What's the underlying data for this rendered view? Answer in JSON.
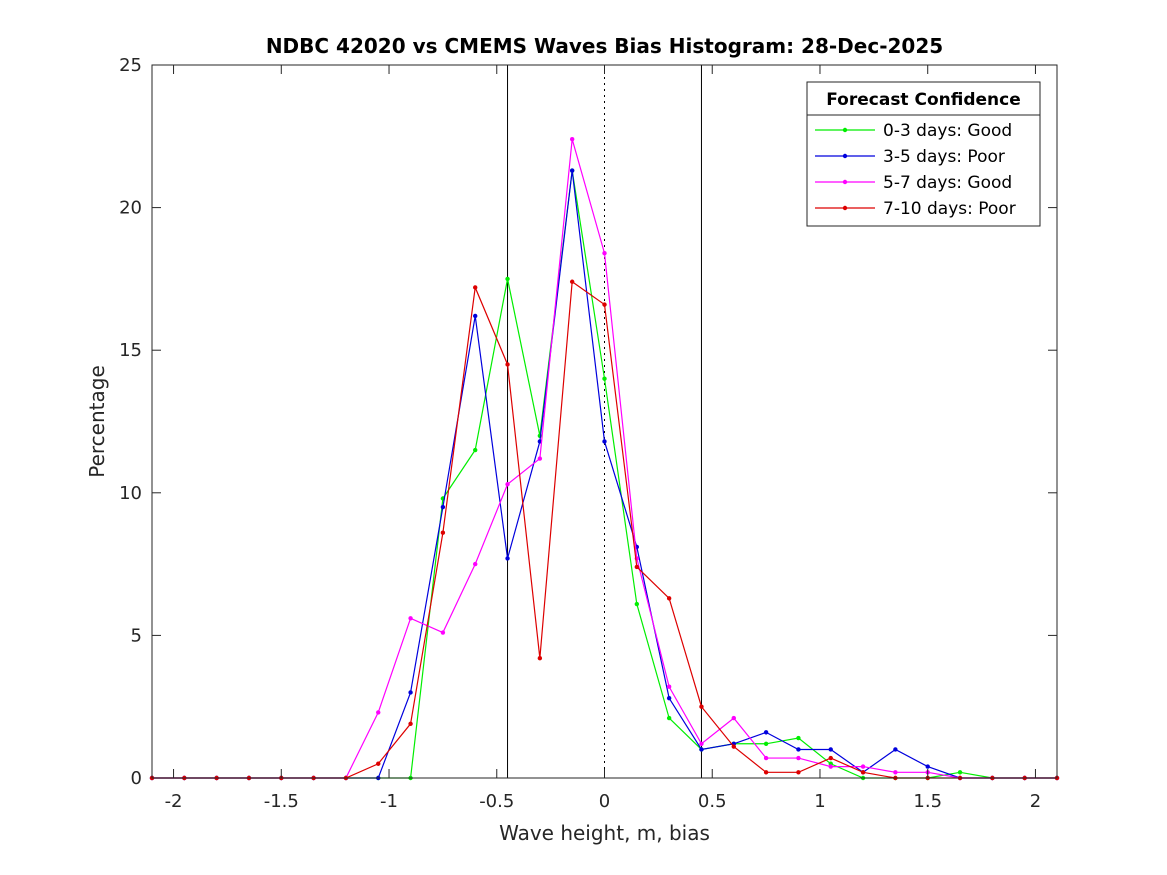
{
  "chart_data": {
    "type": "line",
    "title": "NDBC 42020 vs CMEMS Waves Bias Histogram: 28-Dec-2025",
    "xlabel": "Wave height, m, bias",
    "ylabel": "Percentage",
    "xlim": [
      -2.1,
      2.1
    ],
    "ylim": [
      0,
      25
    ],
    "xticks": [
      -2,
      -1.5,
      -1,
      -0.5,
      0,
      0.5,
      1,
      1.5,
      2
    ],
    "xtick_labels": [
      "-2",
      "-1.5",
      "-1",
      "-0.5",
      "0",
      "0.5",
      "1",
      "1.5",
      "2"
    ],
    "yticks": [
      0,
      5,
      10,
      15,
      20,
      25
    ],
    "ytick_labels": [
      "0",
      "5",
      "10",
      "15",
      "20",
      "25"
    ],
    "vlines_solid": [
      -0.45,
      0.45
    ],
    "vlines_dotted": [
      0
    ],
    "legend_title": "Forecast Confidence",
    "legend_location": "top-right",
    "x": [
      -2.1,
      -1.95,
      -1.8,
      -1.65,
      -1.5,
      -1.35,
      -1.2,
      -1.05,
      -0.9,
      -0.75,
      -0.6,
      -0.45,
      -0.3,
      -0.15,
      0,
      0.15,
      0.3,
      0.45,
      0.6,
      0.75,
      0.9,
      1.05,
      1.2,
      1.35,
      1.5,
      1.65,
      1.8,
      1.95,
      2.1
    ],
    "series": [
      {
        "name": "0-3 days: Good",
        "color": "#00ee00",
        "values": [
          0,
          0,
          0,
          0,
          0,
          0,
          0,
          0,
          0,
          9.8,
          11.5,
          17.5,
          12.0,
          21.3,
          14.0,
          6.1,
          2.1,
          1.0,
          1.2,
          1.2,
          1.4,
          0.5,
          0,
          0,
          0,
          0.2,
          0,
          0,
          0
        ]
      },
      {
        "name": "3-5 days: Poor",
        "color": "#0000dd",
        "values": [
          0,
          0,
          0,
          0,
          0,
          0,
          0,
          0,
          3.0,
          9.5,
          16.2,
          7.7,
          11.8,
          21.3,
          11.8,
          8.1,
          2.8,
          1.0,
          1.2,
          1.6,
          1.0,
          1.0,
          0.2,
          1.0,
          0.4,
          0,
          0,
          0,
          0
        ]
      },
      {
        "name": "5-7 days: Good",
        "color": "#ff00ff",
        "values": [
          0,
          0,
          0,
          0,
          0,
          0,
          0,
          2.3,
          5.6,
          5.1,
          7.5,
          10.3,
          11.2,
          22.4,
          18.4,
          7.7,
          3.2,
          1.2,
          2.1,
          0.7,
          0.7,
          0.4,
          0.4,
          0.2,
          0.2,
          0,
          0,
          0,
          0
        ]
      },
      {
        "name": "7-10 days: Poor",
        "color": "#dd0000",
        "values": [
          0,
          0,
          0,
          0,
          0,
          0,
          0,
          0.5,
          1.9,
          8.6,
          17.2,
          14.5,
          4.2,
          17.4,
          16.6,
          7.4,
          6.3,
          2.5,
          1.1,
          0.2,
          0.2,
          0.7,
          0.2,
          0,
          0,
          0,
          0,
          0,
          0
        ]
      }
    ]
  }
}
